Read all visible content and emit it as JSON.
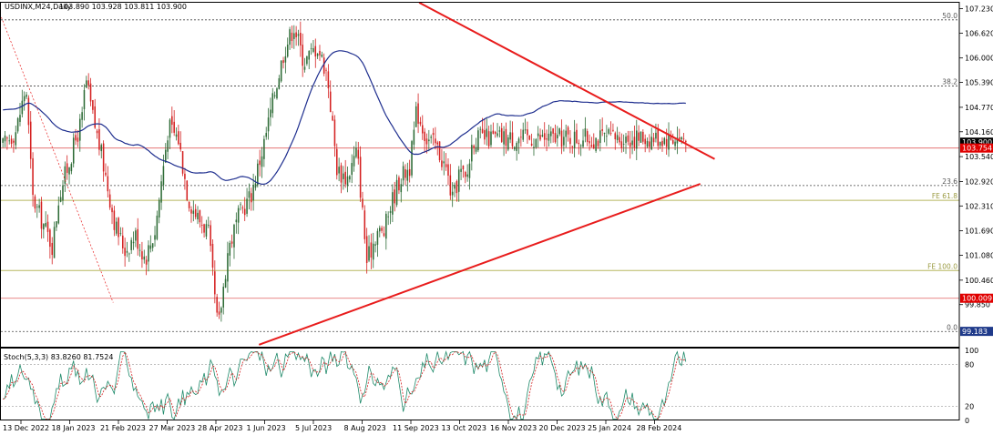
{
  "chart_data": [
    {
      "type": "candlestick",
      "title": "USDINX,M24,Daily",
      "ohlc": [
        103.89,
        103.928,
        103.811,
        103.9
      ],
      "y_ticks": [
        107.23,
        106.62,
        106.0,
        105.39,
        104.77,
        104.16,
        103.54,
        102.92,
        102.31,
        101.69,
        101.08,
        100.46,
        99.85
      ],
      "ylim": [
        98.8,
        107.4
      ],
      "x_ticks": [
        "13 Dec 2022",
        "18 Jan 2023",
        "21 Feb 2023",
        "27 Mar 2023",
        "28 Apr 2023",
        "1 Jun 2023",
        "5 Jul 2023",
        "8 Aug 2023",
        "11 Sep 2023",
        "13 Oct 2023",
        "16 Nov 2023",
        "20 Dec 2023",
        "25 Jan 2024",
        "28 Feb 2024"
      ],
      "price_tags": [
        {
          "label": "103.900",
          "value": 103.9,
          "color": "#000000"
        },
        {
          "label": "103.754",
          "value": 103.754,
          "color": "#e00000"
        },
        {
          "label": "100.009",
          "value": 100.009,
          "color": "#e00000"
        },
        {
          "label": "99.183",
          "value": 99.183,
          "color": "#1f3a8a"
        }
      ],
      "fib_levels": [
        {
          "label": "50.0",
          "value": 106.95,
          "color": "#555555"
        },
        {
          "label": "38.2",
          "value": 105.3,
          "color": "#555555"
        },
        {
          "label": "23.6",
          "value": 102.82,
          "color": "#555555"
        },
        {
          "label": "0.0",
          "value": 99.18,
          "color": "#555555"
        },
        {
          "label": "FE 61.8",
          "value": 102.45,
          "color": "#9a9a40"
        },
        {
          "label": "FE 100.0",
          "value": 100.7,
          "color": "#9a9a40"
        }
      ],
      "trendlines": [
        {
          "from": [
            0.437,
            107.38
          ],
          "to": [
            0.745,
            103.48
          ],
          "color": "#e81c1c"
        },
        {
          "from": [
            0.27,
            98.85
          ],
          "to": [
            0.73,
            102.86
          ],
          "color": "#e81c1c"
        },
        {
          "from": [
            0.0,
            107.1
          ],
          "to": [
            0.118,
            99.9
          ],
          "color": "#e81c1c",
          "dashed": true
        }
      ],
      "moving_average_color": "#1f2f8f",
      "up_color": "#2d6b36",
      "down_color": "#d42020",
      "grid": false
    },
    {
      "type": "line",
      "title": "Stoch(5,3,3) 83.8260 81.7524",
      "y_ticks": [
        100,
        80,
        20,
        0
      ],
      "ylim": [
        0,
        100
      ],
      "series": [
        {
          "values": [],
          "color": "#1f8a6a"
        },
        {
          "values": [],
          "color": "#d42020",
          "dashed": true
        }
      ]
    }
  ]
}
